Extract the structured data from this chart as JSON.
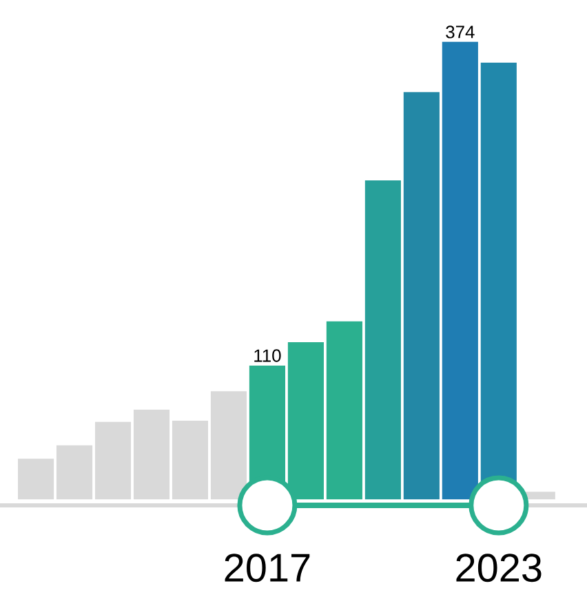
{
  "chart_data": {
    "type": "bar",
    "categories": [
      null,
      null,
      null,
      null,
      null,
      null,
      null,
      null,
      null,
      null,
      null,
      null,
      null,
      null
    ],
    "values": [
      34,
      45,
      64,
      74,
      65,
      89,
      110,
      129,
      146,
      261,
      333,
      374,
      357,
      7
    ],
    "colors": [
      "#d9d9d9",
      "#d9d9d9",
      "#d9d9d9",
      "#d9d9d9",
      "#d9d9d9",
      "#d9d9d9",
      "#2bb08f",
      "#2bb08f",
      "#2bb08f",
      "#27a09a",
      "#2388a6",
      "#1f7db3",
      "#2188ab",
      "#d9d9d9"
    ],
    "value_labels": [
      null,
      null,
      null,
      null,
      null,
      null,
      "110",
      null,
      null,
      null,
      null,
      "374",
      null,
      null
    ],
    "annotations": [
      "2017",
      "2023"
    ]
  }
}
